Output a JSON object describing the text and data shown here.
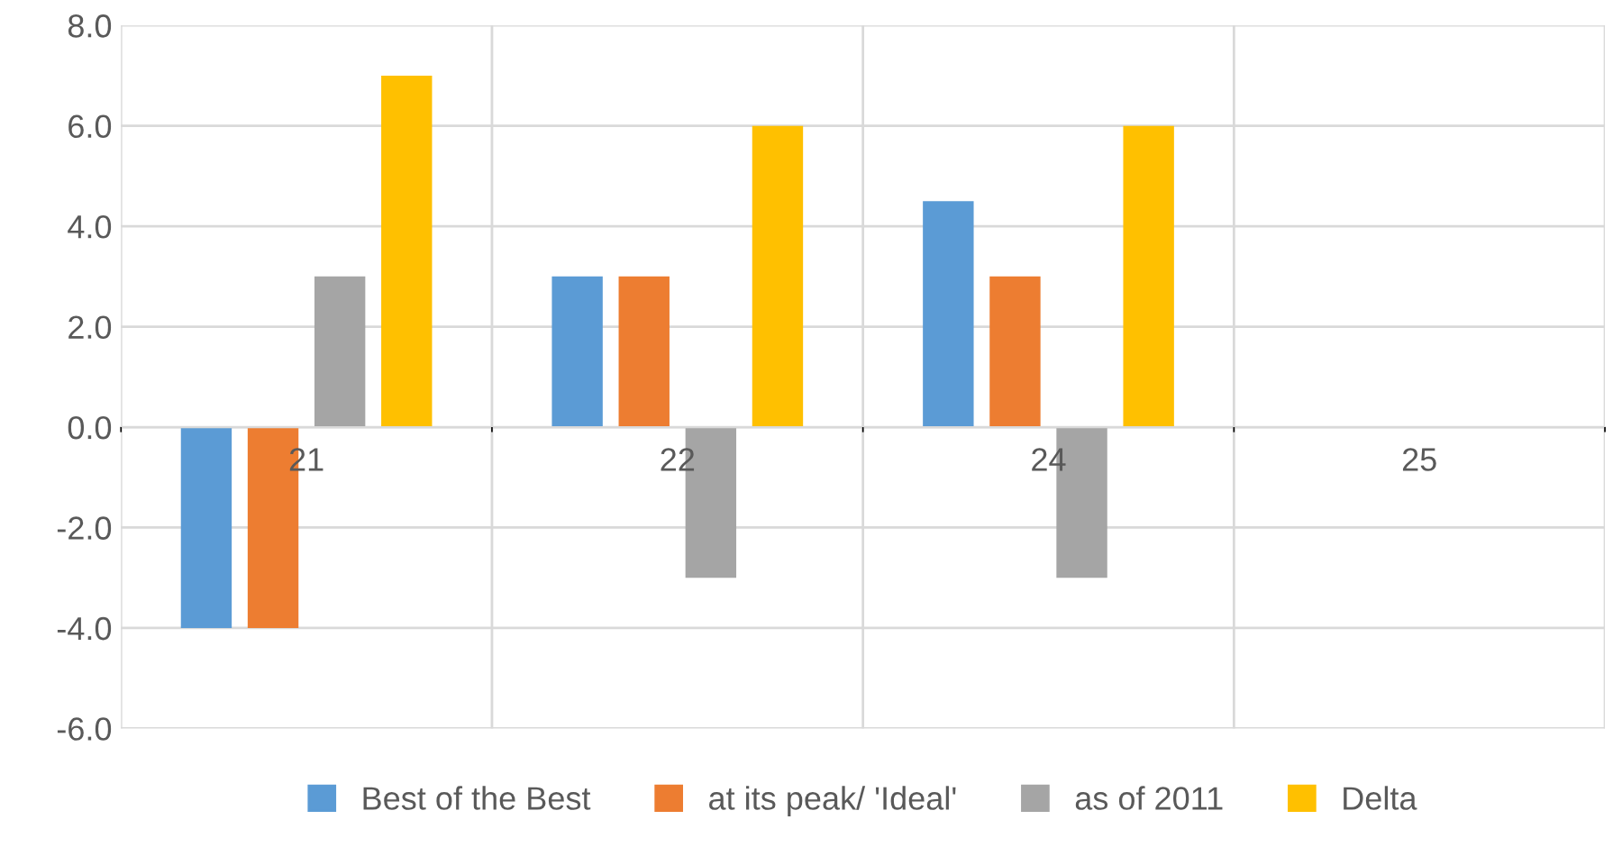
{
  "chart_data": {
    "type": "bar",
    "categories": [
      "21",
      "22",
      "24",
      "25"
    ],
    "series": [
      {
        "name": "Best of the Best",
        "color": "#5b9bd5",
        "values": [
          -4.0,
          3.0,
          4.5,
          null
        ]
      },
      {
        "name": "at its peak/ 'Ideal'",
        "color": "#ed7d31",
        "values": [
          -4.0,
          3.0,
          3.0,
          null
        ]
      },
      {
        "name": "as of 2011",
        "color": "#a5a5a5",
        "values": [
          3.0,
          -3.0,
          -3.0,
          null
        ]
      },
      {
        "name": "Delta",
        "color": "#ffc000",
        "values": [
          7.0,
          6.0,
          6.0,
          null
        ]
      }
    ],
    "ylim": [
      -6,
      8
    ],
    "yticks": [
      {
        "value": -6,
        "label": "-6.0"
      },
      {
        "value": -4,
        "label": "-4.0"
      },
      {
        "value": -2,
        "label": "-2.0"
      },
      {
        "value": 0,
        "label": "0.0"
      },
      {
        "value": 2,
        "label": "2.0"
      },
      {
        "value": 4,
        "label": "4.0"
      },
      {
        "value": 6,
        "label": "6.0"
      },
      {
        "value": 8,
        "label": "8.0"
      }
    ],
    "grid": true,
    "legend": "bottom"
  }
}
